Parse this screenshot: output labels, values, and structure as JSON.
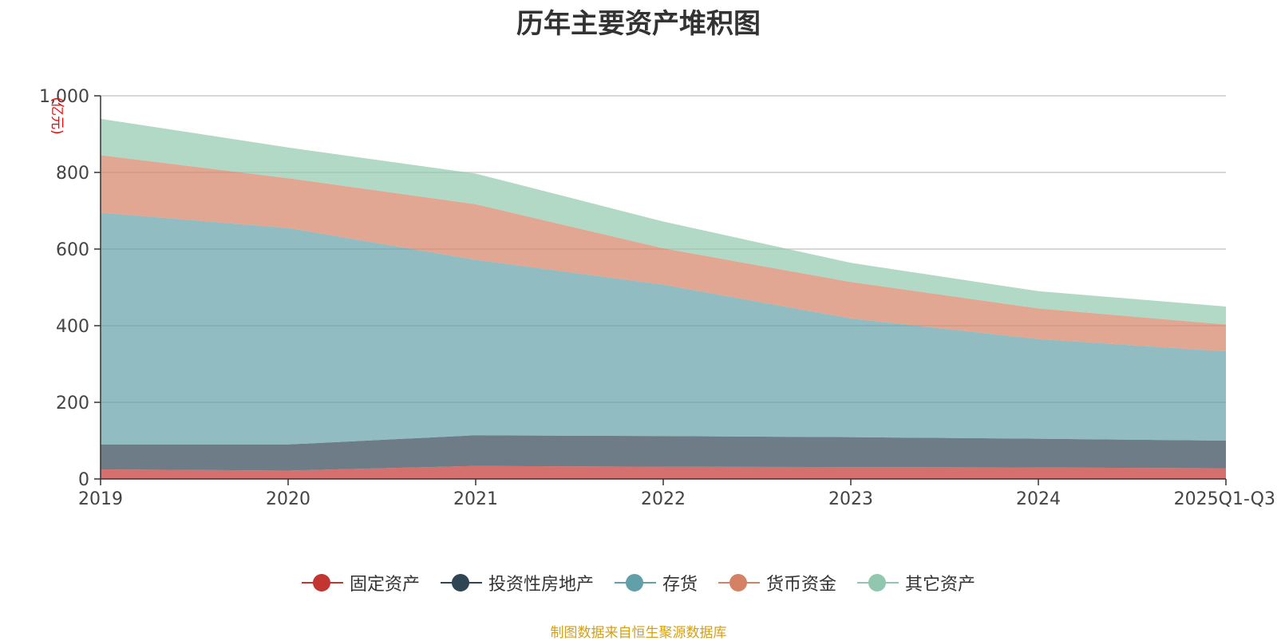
{
  "chart_data": {
    "type": "area",
    "stacked": true,
    "title": "历年主要资产堆积图",
    "ylabel": "(亿元)",
    "xlabel": "",
    "categories": [
      "2019",
      "2020",
      "2021",
      "2022",
      "2023",
      "2024",
      "2025Q1-Q3"
    ],
    "ylim": [
      0,
      1000
    ],
    "yticks": [
      0,
      200,
      400,
      600,
      800,
      1000
    ],
    "ytick_labels": [
      "0",
      "200",
      "400",
      "600",
      "800",
      "1,000"
    ],
    "grid": true,
    "legend_position": "bottom",
    "series": [
      {
        "name": "固定资产",
        "color": "#c23531",
        "values": [
          25,
          22,
          34,
          32,
          31,
          30,
          28
        ]
      },
      {
        "name": "投资性房地产",
        "color": "#2f4554",
        "values": [
          65,
          68,
          80,
          80,
          78,
          75,
          72
        ]
      },
      {
        "name": "存货",
        "color": "#61a0a8",
        "values": [
          605,
          565,
          458,
          395,
          310,
          260,
          233
        ]
      },
      {
        "name": "货币资金",
        "color": "#d48265",
        "values": [
          150,
          130,
          145,
          95,
          95,
          80,
          70
        ]
      },
      {
        "name": "其它资产",
        "color": "#91c7ae",
        "values": [
          95,
          80,
          80,
          70,
          50,
          45,
          47
        ]
      }
    ],
    "source_note": "制图数据来自恒生聚源数据库"
  }
}
